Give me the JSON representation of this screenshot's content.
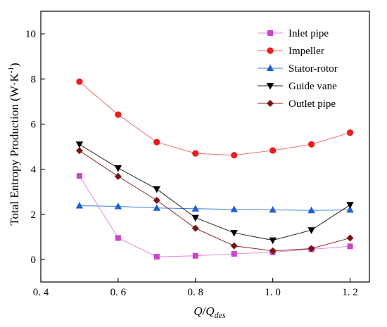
{
  "chart_data": {
    "type": "line",
    "x": [
      0.5,
      0.6,
      0.7,
      0.8,
      0.9,
      1.0,
      1.1,
      1.2
    ],
    "xlim": [
      0.4,
      1.25
    ],
    "ylim": [
      -1,
      11
    ],
    "x_ticks": [
      0.4,
      0.6,
      0.8,
      1.0,
      1.2
    ],
    "x_tick_labels": [
      "0. 4",
      "0. 6",
      "0. 8",
      "1. 0",
      "1. 2"
    ],
    "y_ticks": [
      0,
      2,
      4,
      6,
      8,
      10
    ],
    "y_tick_labels": [
      "0",
      "2",
      "4",
      "6",
      "8",
      "10"
    ],
    "xlabel": {
      "main": "Q",
      "sep": "/",
      "sym": "Q",
      "sub": "des"
    },
    "ylabel": {
      "text": "Total Entropy Production (W·K",
      "sup": "-1",
      "close": ")"
    },
    "grid": false,
    "legend_position": "top-right",
    "series": [
      {
        "name": "Inlet pipe",
        "color": "#cc44cc",
        "line_color": "#e38ce3",
        "marker": "square",
        "values": [
          3.7,
          0.95,
          0.12,
          0.16,
          0.25,
          0.32,
          0.45,
          0.58
        ]
      },
      {
        "name": "Impeller",
        "color": "#ee1c1c",
        "line_color": "#f27070",
        "marker": "circle",
        "values": [
          7.88,
          6.42,
          5.2,
          4.7,
          4.62,
          4.83,
          5.1,
          5.62
        ]
      },
      {
        "name": "Stator-rotor",
        "color": "#1f5fd1",
        "line_color": "#3d7ee0",
        "marker": "triangle-up",
        "values": [
          2.38,
          2.35,
          2.28,
          2.25,
          2.22,
          2.2,
          2.17,
          2.2
        ]
      },
      {
        "name": "Guide vane",
        "color": "#000000",
        "line_color": "#222222",
        "marker": "triangle-down",
        "values": [
          5.1,
          4.05,
          3.12,
          1.85,
          1.18,
          0.85,
          1.3,
          2.42
        ]
      },
      {
        "name": "Outlet pipe",
        "color": "#7a1212",
        "line_color": "#8e2a2a",
        "marker": "diamond",
        "values": [
          4.82,
          3.68,
          2.62,
          1.38,
          0.6,
          0.38,
          0.48,
          0.95
        ]
      }
    ]
  }
}
